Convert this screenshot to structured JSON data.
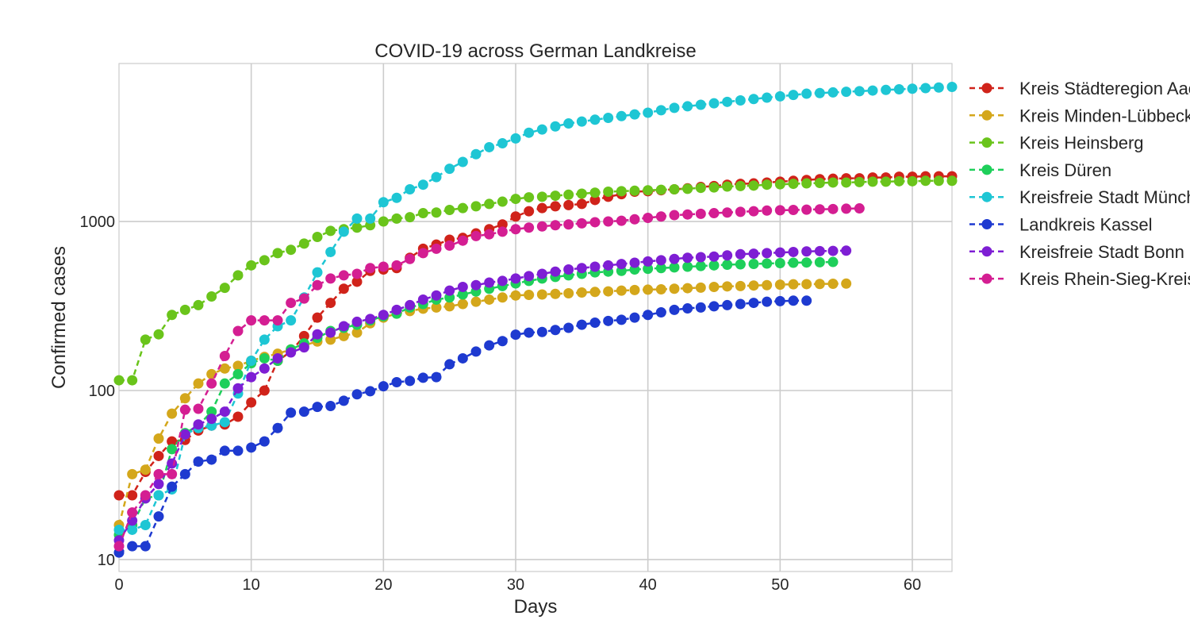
{
  "chart_data": {
    "type": "line",
    "title": "COVID-19 across German Landkreise",
    "xlabel": "Days",
    "ylabel": "Confirmed cases",
    "xlim": [
      0,
      63
    ],
    "ylim": [
      8.5,
      8600
    ],
    "yscale": "log",
    "xticks": [
      0,
      10,
      20,
      30,
      40,
      50,
      60
    ],
    "xtick_labels": [
      "0",
      "10",
      "20",
      "30",
      "40",
      "50",
      "60"
    ],
    "yticks": [
      10,
      100,
      1000
    ],
    "ytick_labels": [
      "10",
      "100",
      "1000"
    ],
    "grid": true,
    "legend_position": "outside right",
    "series": [
      {
        "name": "Kreis Städteregion Aachen",
        "color": "#d0231a",
        "values": [
          24,
          24,
          33,
          41,
          50,
          51,
          58,
          62,
          63,
          70,
          85,
          100,
          150,
          170,
          210,
          270,
          330,
          400,
          440,
          510,
          520,
          530,
          610,
          690,
          730,
          780,
          800,
          850,
          900,
          960,
          1070,
          1150,
          1200,
          1230,
          1250,
          1270,
          1340,
          1400,
          1450,
          1500,
          1510,
          1530,
          1550,
          1570,
          1600,
          1620,
          1650,
          1670,
          1680,
          1700,
          1720,
          1740,
          1760,
          1780,
          1790,
          1800,
          1800,
          1820,
          1820,
          1840,
          1840,
          1850,
          1850,
          1850
        ]
      },
      {
        "name": "Kreis Minden-Lübbecke",
        "color": "#d4a71b",
        "values": [
          16,
          32,
          34,
          52,
          73,
          90,
          110,
          125,
          135,
          140,
          150,
          158,
          165,
          175,
          185,
          195,
          200,
          210,
          220,
          250,
          270,
          285,
          295,
          305,
          310,
          315,
          325,
          335,
          345,
          355,
          365,
          368,
          370,
          373,
          376,
          380,
          383,
          386,
          390,
          393,
          395,
          397,
          400,
          403,
          406,
          410,
          413,
          415,
          418,
          420,
          423,
          425,
          426,
          427,
          428,
          429
        ]
      },
      {
        "name": "Kreis Heinsberg",
        "color": "#6ac41b",
        "values": [
          115,
          115,
          200,
          215,
          280,
          300,
          320,
          360,
          405,
          480,
          550,
          590,
          650,
          680,
          740,
          810,
          880,
          900,
          920,
          950,
          1000,
          1040,
          1060,
          1120,
          1130,
          1170,
          1200,
          1230,
          1270,
          1310,
          1360,
          1390,
          1400,
          1420,
          1440,
          1460,
          1480,
          1500,
          1510,
          1520,
          1530,
          1540,
          1550,
          1560,
          1580,
          1590,
          1610,
          1620,
          1630,
          1650,
          1660,
          1670,
          1680,
          1690,
          1700,
          1700,
          1710,
          1720,
          1720,
          1730,
          1730,
          1740,
          1740,
          1740
        ]
      },
      {
        "name": "Kreis Düren",
        "color": "#1ecf5a",
        "values": [
          14,
          16,
          23,
          24,
          45,
          56,
          62,
          75,
          110,
          125,
          145,
          155,
          150,
          175,
          190,
          205,
          225,
          235,
          245,
          260,
          275,
          285,
          310,
          325,
          345,
          355,
          370,
          385,
          400,
          415,
          430,
          445,
          460,
          470,
          480,
          490,
          500,
          505,
          510,
          520,
          525,
          530,
          535,
          540,
          545,
          550,
          555,
          558,
          561,
          564,
          567,
          570,
          572,
          574,
          576
        ]
      },
      {
        "name": "Kreisfreie Stadt München",
        "color": "#1ec6d4",
        "values": [
          15,
          15,
          16,
          24,
          26,
          55,
          60,
          62,
          65,
          96,
          150,
          200,
          240,
          260,
          355,
          500,
          660,
          870,
          1040,
          1040,
          1300,
          1380,
          1550,
          1650,
          1830,
          2050,
          2250,
          2500,
          2750,
          2900,
          3100,
          3350,
          3500,
          3650,
          3800,
          3900,
          4000,
          4100,
          4200,
          4300,
          4400,
          4550,
          4700,
          4800,
          4900,
          5000,
          5100,
          5200,
          5300,
          5400,
          5500,
          5600,
          5700,
          5750,
          5800,
          5850,
          5900,
          5950,
          6000,
          6050,
          6100,
          6150,
          6200,
          6250
        ]
      },
      {
        "name": "Landkreis Kassel",
        "color": "#1e3ad0",
        "values": [
          11,
          12,
          12,
          18,
          27,
          32,
          38,
          39,
          44,
          44,
          46,
          50,
          60,
          74,
          75,
          80,
          81,
          87,
          95,
          99,
          106,
          112,
          114,
          119,
          120,
          143,
          155,
          170,
          185,
          196,
          214,
          220,
          222,
          228,
          235,
          245,
          252,
          258,
          262,
          270,
          280,
          290,
          300,
          306,
          310,
          315,
          320,
          325,
          330,
          335,
          338,
          340,
          340
        ]
      },
      {
        "name": "Kreisfreie Stadt Bonn",
        "color": "#7e1ed4",
        "values": [
          13,
          17,
          23,
          28,
          37,
          55,
          63,
          68,
          75,
          103,
          120,
          135,
          155,
          168,
          180,
          215,
          220,
          240,
          255,
          265,
          280,
          300,
          320,
          345,
          365,
          390,
          410,
          420,
          435,
          445,
          460,
          475,
          490,
          505,
          520,
          530,
          540,
          550,
          560,
          570,
          580,
          590,
          600,
          610,
          615,
          620,
          630,
          640,
          645,
          650,
          655,
          660,
          665,
          668,
          670,
          672
        ]
      },
      {
        "name": "Kreis Rhein-Sieg-Kreis",
        "color": "#d41e92",
        "values": [
          12,
          19,
          24,
          32,
          32,
          77,
          78,
          110,
          160,
          225,
          260,
          260,
          260,
          330,
          350,
          420,
          460,
          480,
          490,
          530,
          540,
          550,
          600,
          650,
          690,
          720,
          770,
          820,
          840,
          870,
          900,
          920,
          935,
          950,
          960,
          975,
          990,
          1000,
          1010,
          1030,
          1050,
          1070,
          1090,
          1100,
          1110,
          1120,
          1130,
          1140,
          1150,
          1160,
          1165,
          1170,
          1175,
          1180,
          1185,
          1190,
          1195
        ]
      }
    ]
  }
}
